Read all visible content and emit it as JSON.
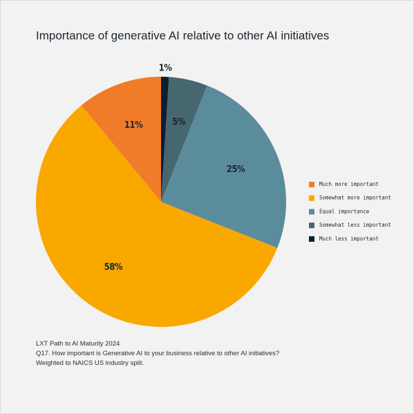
{
  "chart_data": {
    "type": "pie",
    "title": "Importance of generative AI relative to other AI initiatives",
    "categories": [
      "Much more important",
      "Somewhat more important",
      "Equal importance",
      "Somewhat less important",
      "Much less important"
    ],
    "values": [
      11,
      58,
      25,
      5,
      1
    ],
    "value_labels": [
      "11%",
      "58%",
      "25%",
      "5%",
      "1%"
    ],
    "colors": [
      "#f07c2a",
      "#f9a800",
      "#5b8c9b",
      "#466670",
      "#0e1e2b"
    ],
    "legend": "right",
    "notes": [
      "LXT Path to AI Maturity 2024",
      "Q17. How important is Generative AI to your business relative to other AI initiatives?",
      "Weighted to NAICS US industry split."
    ]
  }
}
